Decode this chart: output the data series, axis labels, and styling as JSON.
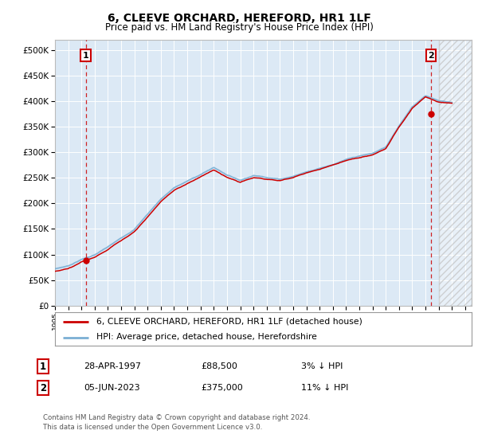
{
  "title": "6, CLEEVE ORCHARD, HEREFORD, HR1 1LF",
  "subtitle": "Price paid vs. HM Land Registry's House Price Index (HPI)",
  "ylim": [
    0,
    520000
  ],
  "ytick_labels": [
    "£0",
    "£50K",
    "£100K",
    "£150K",
    "£200K",
    "£250K",
    "£300K",
    "£350K",
    "£400K",
    "£450K",
    "£500K"
  ],
  "xlim_start": 1995.0,
  "xlim_end": 2026.5,
  "hpi_color": "#7bafd4",
  "price_color": "#cc0000",
  "marker1_date": 1997.33,
  "marker1_price": 88500,
  "marker1_label": "1",
  "marker1_date_str": "28-APR-1997",
  "marker1_price_str": "£88,500",
  "marker1_hpi_str": "3% ↓ HPI",
  "marker2_date": 2023.42,
  "marker2_price": 375000,
  "marker2_label": "2",
  "marker2_date_str": "05-JUN-2023",
  "marker2_price_str": "£375,000",
  "marker2_hpi_str": "11% ↓ HPI",
  "legend_line1": "6, CLEEVE ORCHARD, HEREFORD, HR1 1LF (detached house)",
  "legend_line2": "HPI: Average price, detached house, Herefordshire",
  "footer": "Contains HM Land Registry data © Crown copyright and database right 2024.\nThis data is licensed under the Open Government Licence v3.0.",
  "plot_bg": "#dce9f5",
  "hpi_years": [
    1995,
    1996,
    1997,
    1998,
    1999,
    2000,
    2001,
    2002,
    2003,
    2004,
    2005,
    2006,
    2007,
    2008,
    2009,
    2010,
    2011,
    2012,
    2013,
    2014,
    2015,
    2016,
    2017,
    2018,
    2019,
    2020,
    2021,
    2022,
    2023,
    2024,
    2025
  ],
  "hpi_values": [
    72000,
    78000,
    91000,
    100000,
    115000,
    132000,
    150000,
    180000,
    210000,
    232000,
    245000,
    258000,
    272000,
    258000,
    248000,
    258000,
    255000,
    252000,
    258000,
    267000,
    275000,
    283000,
    292000,
    298000,
    303000,
    315000,
    358000,
    395000,
    418000,
    408000,
    405000
  ]
}
